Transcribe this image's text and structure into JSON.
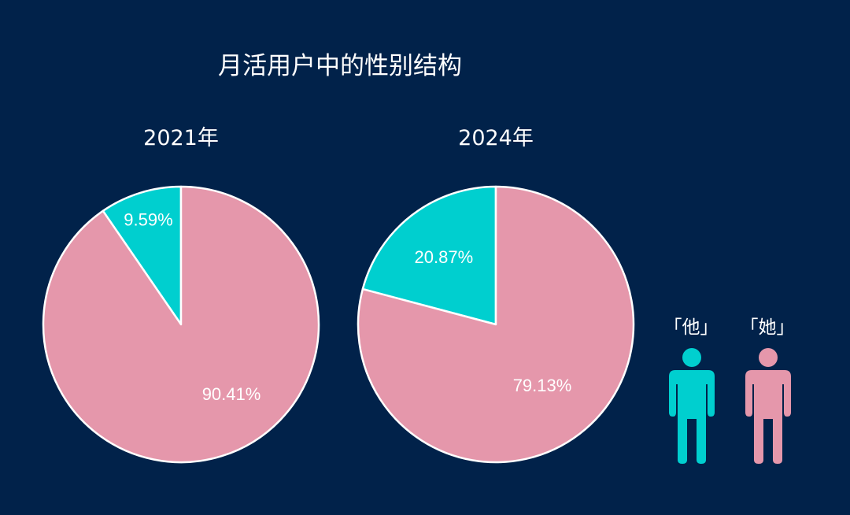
{
  "title": "月活用户中的性别结构",
  "colors": {
    "background": "#01224a",
    "male": "#00cfcf",
    "female": "#e597ab",
    "text": "#ffffff"
  },
  "legend": [
    {
      "label": "「他」",
      "icon": "male-person-icon",
      "color": "#00cfcf"
    },
    {
      "label": "「她」",
      "icon": "female-person-icon",
      "color": "#e597ab"
    }
  ],
  "chart_data": [
    {
      "type": "pie",
      "title": "2021年",
      "categories": [
        "他 (male)",
        "她 (female)"
      ],
      "values": [
        9.59,
        90.41
      ],
      "labels": [
        "9.59%",
        "90.41%"
      ],
      "colors": [
        "#00cfcf",
        "#e597ab"
      ]
    },
    {
      "type": "pie",
      "title": "2024年",
      "categories": [
        "他 (male)",
        "她 (female)"
      ],
      "values": [
        20.87,
        79.13
      ],
      "labels": [
        "20.87%",
        "79.13%"
      ],
      "colors": [
        "#00cfcf",
        "#e597ab"
      ]
    }
  ]
}
